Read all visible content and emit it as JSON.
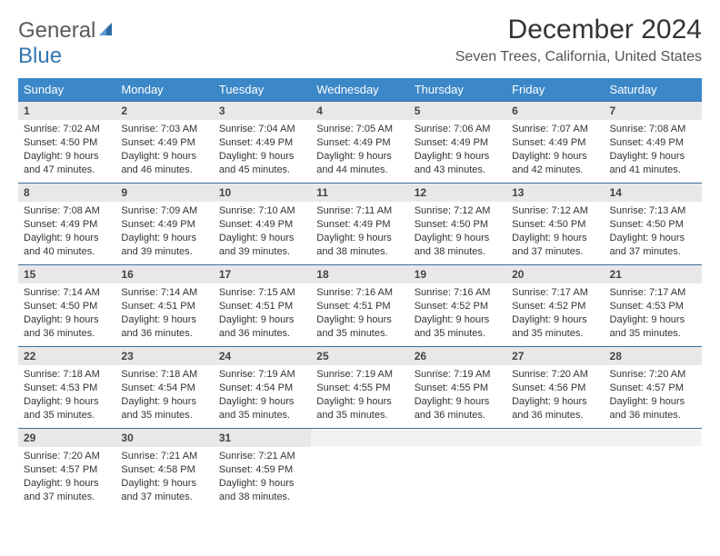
{
  "logo": {
    "word1": "General",
    "word2": "Blue"
  },
  "title": "December 2024",
  "location": "Seven Trees, California, United States",
  "colors": {
    "header_bg": "#3b87c8",
    "header_text": "#ffffff",
    "daynum_bg": "#e8e8e8",
    "daynum_border": "#3b6f9e",
    "body_text": "#333333",
    "logo_gray": "#5a5a5a",
    "logo_blue": "#3276b1"
  },
  "weekdays": [
    "Sunday",
    "Monday",
    "Tuesday",
    "Wednesday",
    "Thursday",
    "Friday",
    "Saturday"
  ],
  "weeks": [
    [
      {
        "n": "1",
        "sr": "7:02 AM",
        "ss": "4:50 PM",
        "dl": "9 hours and 47 minutes."
      },
      {
        "n": "2",
        "sr": "7:03 AM",
        "ss": "4:49 PM",
        "dl": "9 hours and 46 minutes."
      },
      {
        "n": "3",
        "sr": "7:04 AM",
        "ss": "4:49 PM",
        "dl": "9 hours and 45 minutes."
      },
      {
        "n": "4",
        "sr": "7:05 AM",
        "ss": "4:49 PM",
        "dl": "9 hours and 44 minutes."
      },
      {
        "n": "5",
        "sr": "7:06 AM",
        "ss": "4:49 PM",
        "dl": "9 hours and 43 minutes."
      },
      {
        "n": "6",
        "sr": "7:07 AM",
        "ss": "4:49 PM",
        "dl": "9 hours and 42 minutes."
      },
      {
        "n": "7",
        "sr": "7:08 AM",
        "ss": "4:49 PM",
        "dl": "9 hours and 41 minutes."
      }
    ],
    [
      {
        "n": "8",
        "sr": "7:08 AM",
        "ss": "4:49 PM",
        "dl": "9 hours and 40 minutes."
      },
      {
        "n": "9",
        "sr": "7:09 AM",
        "ss": "4:49 PM",
        "dl": "9 hours and 39 minutes."
      },
      {
        "n": "10",
        "sr": "7:10 AM",
        "ss": "4:49 PM",
        "dl": "9 hours and 39 minutes."
      },
      {
        "n": "11",
        "sr": "7:11 AM",
        "ss": "4:49 PM",
        "dl": "9 hours and 38 minutes."
      },
      {
        "n": "12",
        "sr": "7:12 AM",
        "ss": "4:50 PM",
        "dl": "9 hours and 38 minutes."
      },
      {
        "n": "13",
        "sr": "7:12 AM",
        "ss": "4:50 PM",
        "dl": "9 hours and 37 minutes."
      },
      {
        "n": "14",
        "sr": "7:13 AM",
        "ss": "4:50 PM",
        "dl": "9 hours and 37 minutes."
      }
    ],
    [
      {
        "n": "15",
        "sr": "7:14 AM",
        "ss": "4:50 PM",
        "dl": "9 hours and 36 minutes."
      },
      {
        "n": "16",
        "sr": "7:14 AM",
        "ss": "4:51 PM",
        "dl": "9 hours and 36 minutes."
      },
      {
        "n": "17",
        "sr": "7:15 AM",
        "ss": "4:51 PM",
        "dl": "9 hours and 36 minutes."
      },
      {
        "n": "18",
        "sr": "7:16 AM",
        "ss": "4:51 PM",
        "dl": "9 hours and 35 minutes."
      },
      {
        "n": "19",
        "sr": "7:16 AM",
        "ss": "4:52 PM",
        "dl": "9 hours and 35 minutes."
      },
      {
        "n": "20",
        "sr": "7:17 AM",
        "ss": "4:52 PM",
        "dl": "9 hours and 35 minutes."
      },
      {
        "n": "21",
        "sr": "7:17 AM",
        "ss": "4:53 PM",
        "dl": "9 hours and 35 minutes."
      }
    ],
    [
      {
        "n": "22",
        "sr": "7:18 AM",
        "ss": "4:53 PM",
        "dl": "9 hours and 35 minutes."
      },
      {
        "n": "23",
        "sr": "7:18 AM",
        "ss": "4:54 PM",
        "dl": "9 hours and 35 minutes."
      },
      {
        "n": "24",
        "sr": "7:19 AM",
        "ss": "4:54 PM",
        "dl": "9 hours and 35 minutes."
      },
      {
        "n": "25",
        "sr": "7:19 AM",
        "ss": "4:55 PM",
        "dl": "9 hours and 35 minutes."
      },
      {
        "n": "26",
        "sr": "7:19 AM",
        "ss": "4:55 PM",
        "dl": "9 hours and 36 minutes."
      },
      {
        "n": "27",
        "sr": "7:20 AM",
        "ss": "4:56 PM",
        "dl": "9 hours and 36 minutes."
      },
      {
        "n": "28",
        "sr": "7:20 AM",
        "ss": "4:57 PM",
        "dl": "9 hours and 36 minutes."
      }
    ],
    [
      {
        "n": "29",
        "sr": "7:20 AM",
        "ss": "4:57 PM",
        "dl": "9 hours and 37 minutes."
      },
      {
        "n": "30",
        "sr": "7:21 AM",
        "ss": "4:58 PM",
        "dl": "9 hours and 37 minutes."
      },
      {
        "n": "31",
        "sr": "7:21 AM",
        "ss": "4:59 PM",
        "dl": "9 hours and 38 minutes."
      },
      null,
      null,
      null,
      null
    ]
  ],
  "labels": {
    "sunrise": "Sunrise:",
    "sunset": "Sunset:",
    "daylight": "Daylight:"
  }
}
